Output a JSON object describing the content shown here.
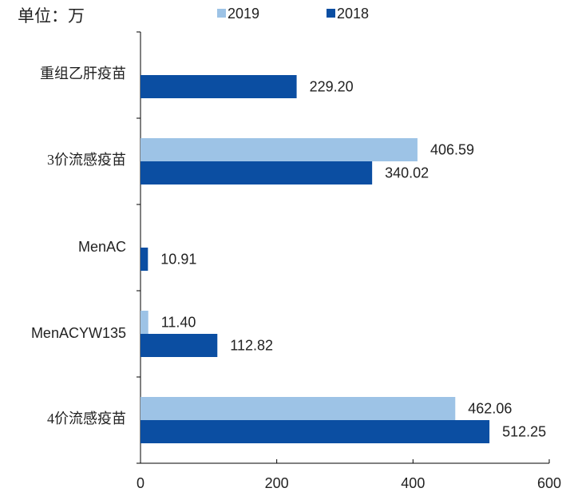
{
  "chart_data": {
    "type": "barh",
    "annotation": "单位：万",
    "categories": [
      "重组乙肝疫苗",
      "3价流感疫苗",
      "MenAC",
      "MenACYW135",
      "4价流感疫苗"
    ],
    "series": [
      {
        "name": "2019",
        "color": "#9dc3e6",
        "values": [
          null,
          406.59,
          null,
          11.4,
          462.06
        ],
        "value_labels": [
          null,
          "406.59",
          null,
          "11.40",
          "462.06"
        ]
      },
      {
        "name": "2018",
        "color": "#0b4ea2",
        "values": [
          229.2,
          340.02,
          10.91,
          112.82,
          512.25
        ],
        "value_labels": [
          "229.20",
          "340.02",
          "10.91",
          "112.82",
          "512.25"
        ]
      }
    ],
    "xlim": [
      0,
      600
    ],
    "xticks": [
      0,
      200,
      400,
      600
    ],
    "grid": false,
    "legend": "top"
  }
}
